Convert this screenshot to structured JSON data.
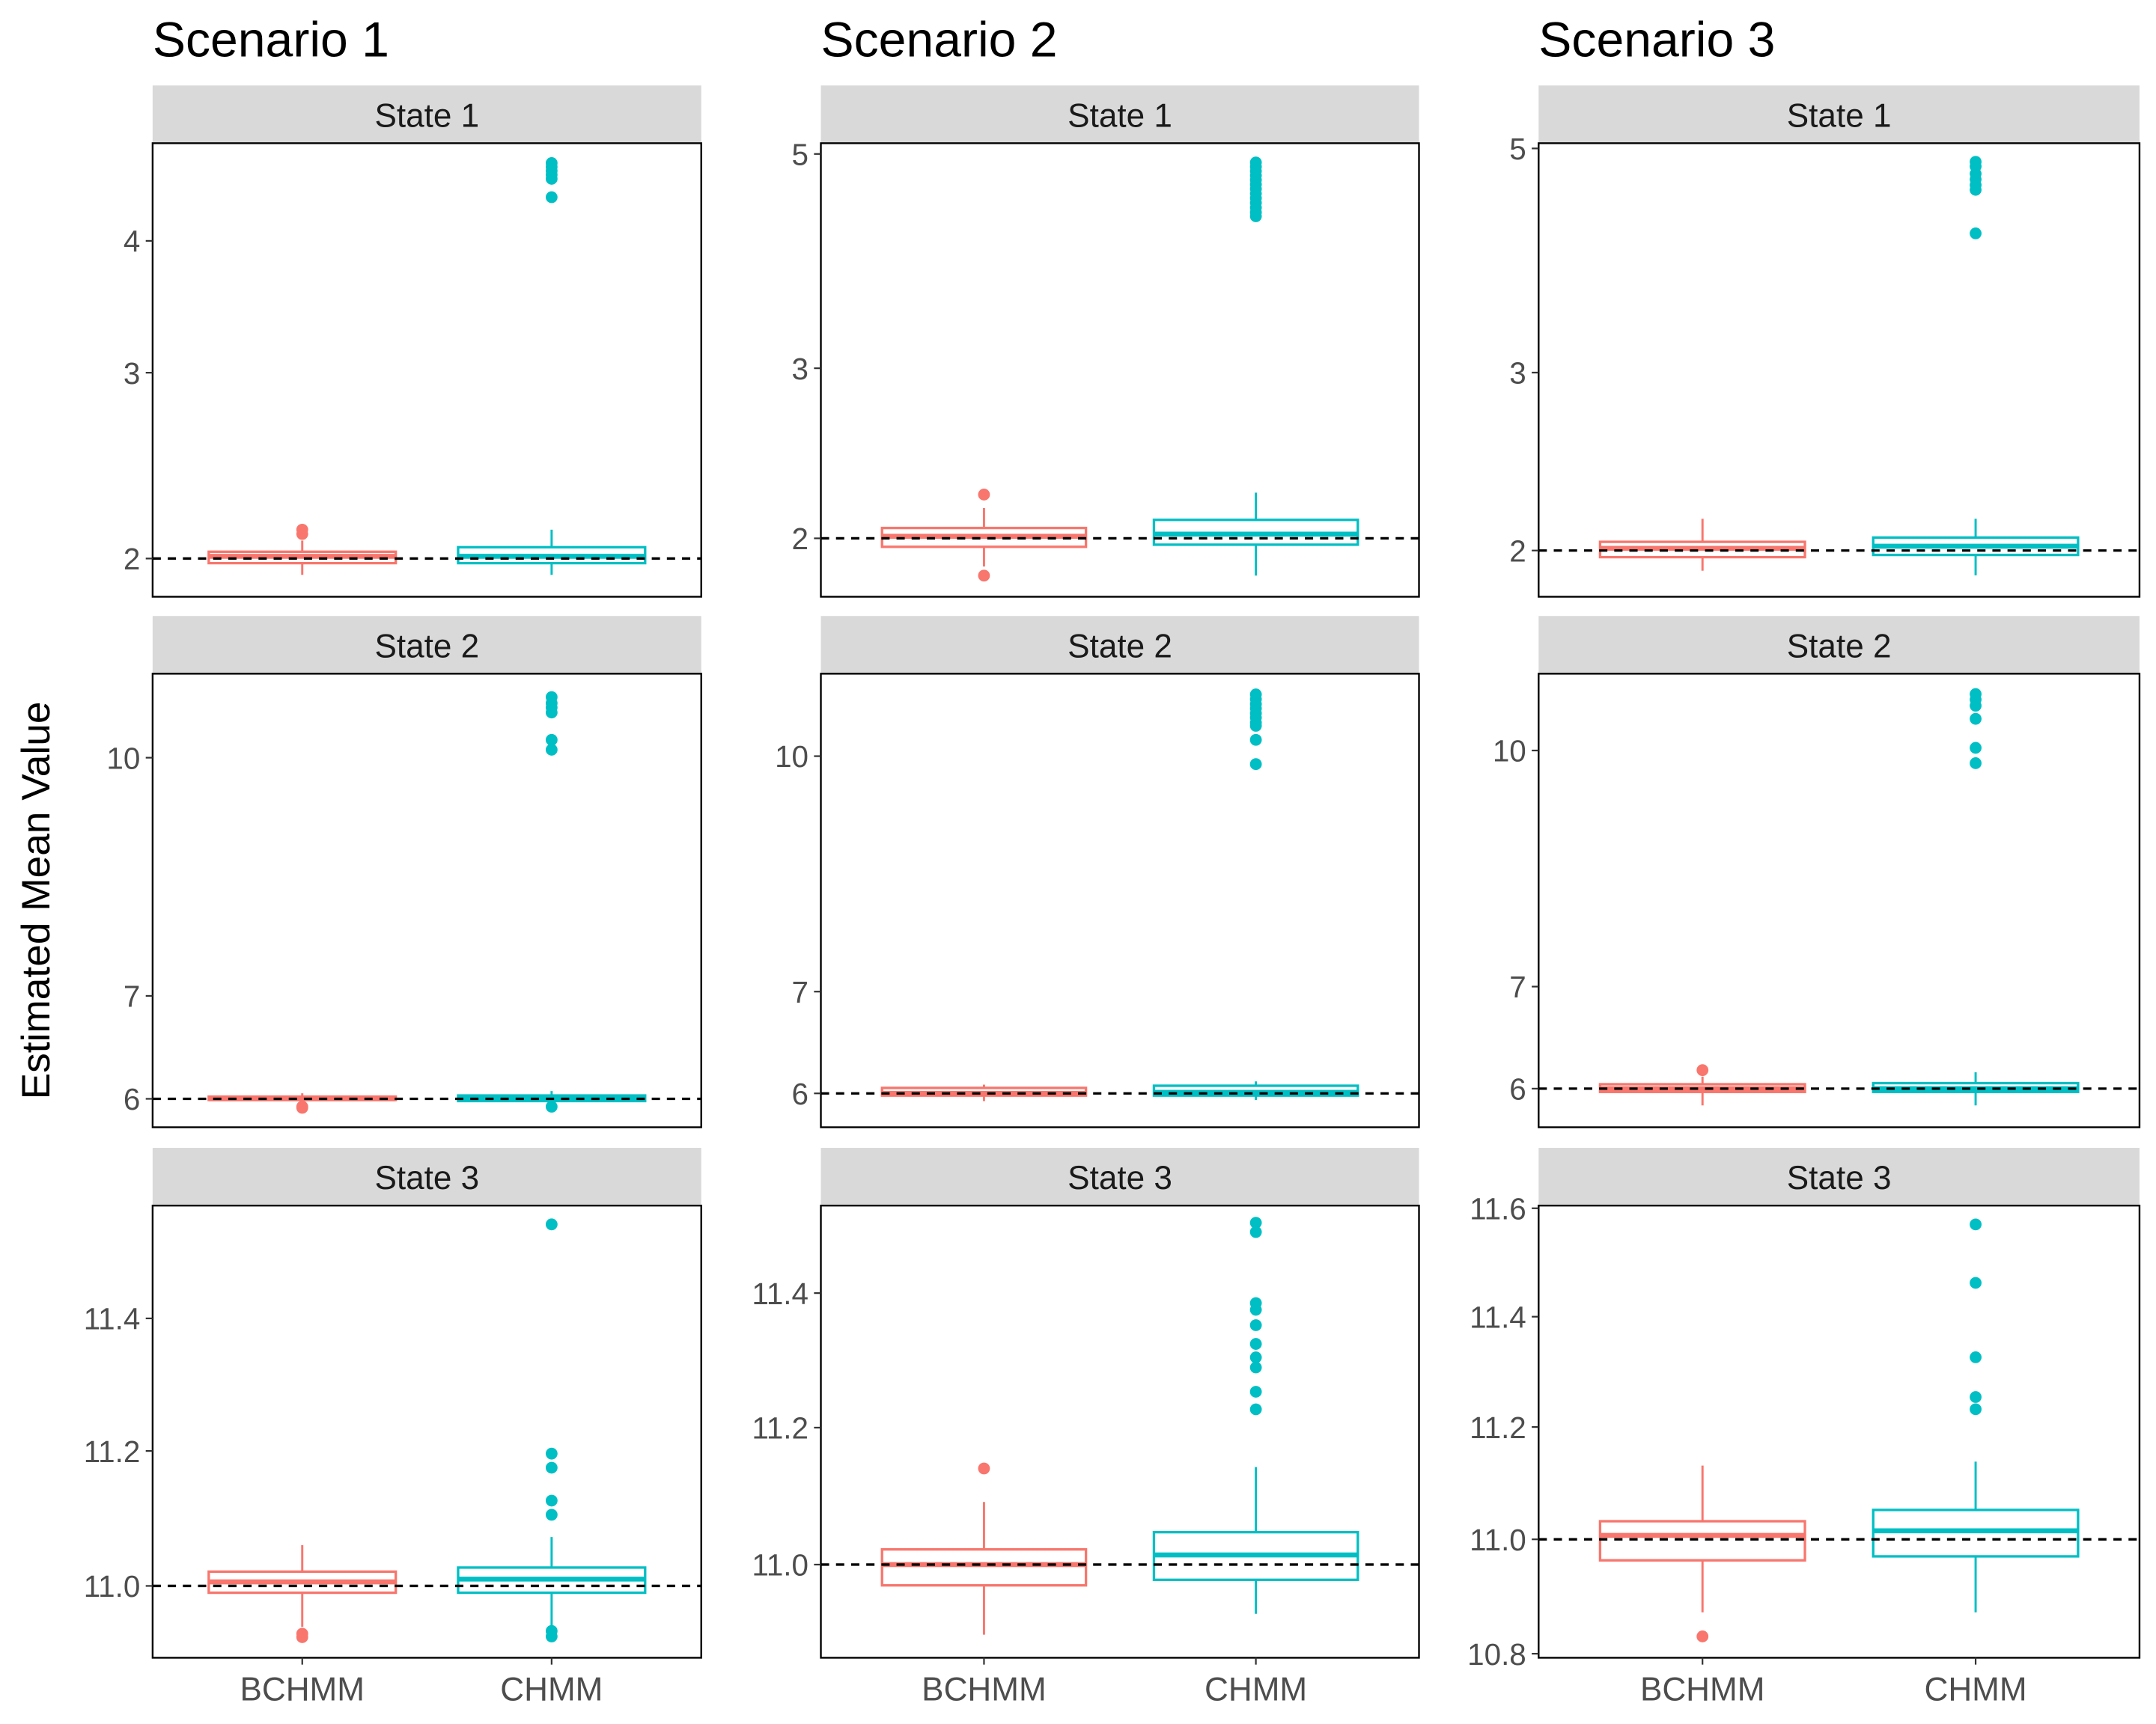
{
  "ylabel": "Estimated Mean Value",
  "categories": [
    "BCHMM",
    "CHMM"
  ],
  "colors": {
    "BCHMM": "#F8766D",
    "CHMM": "#00BFC4",
    "strip": "#D9D9D9",
    "reference": "#000000"
  },
  "scenarios": [
    "Scenario 1",
    "Scenario 2",
    "Scenario 3"
  ],
  "states": [
    "State 1",
    "State 2",
    "State 3"
  ],
  "chart_data": [
    {
      "type": "box",
      "scenario": "Scenario 1",
      "state": "State 1",
      "y_scale": "log10",
      "ylim": [
        1.84,
        4.95
      ],
      "yticks": [
        "2",
        "3",
        "4"
      ],
      "reference_line": 2,
      "series": [
        {
          "category": "BCHMM",
          "whisker_low": 1.93,
          "q1": 1.98,
          "median": 2.01,
          "q3": 2.03,
          "whisker_high": 2.08,
          "outliers": [
            2.11,
            2.13
          ]
        },
        {
          "category": "CHMM",
          "whisker_low": 1.93,
          "q1": 1.98,
          "median": 2.01,
          "q3": 2.05,
          "whisker_high": 2.13,
          "outliers": [
            4.74,
            4.7,
            4.66,
            4.62,
            4.58,
            4.4
          ]
        }
      ]
    },
    {
      "type": "box",
      "scenario": "Scenario 2",
      "state": "State 1",
      "y_scale": "log10",
      "ylim": [
        1.74,
        5.13
      ],
      "yticks": [
        "2",
        "3",
        "5"
      ],
      "reference_line": 2,
      "series": [
        {
          "category": "BCHMM",
          "whisker_low": 1.87,
          "q1": 1.96,
          "median": 2.01,
          "q3": 2.05,
          "whisker_high": 2.15,
          "outliers": [
            1.83,
            2.22
          ]
        },
        {
          "category": "CHMM",
          "whisker_low": 1.83,
          "q1": 1.97,
          "median": 2.02,
          "q3": 2.09,
          "whisker_high": 2.23,
          "outliers": [
            4.9,
            4.85,
            4.8,
            4.75,
            4.7,
            4.65,
            4.6,
            4.55,
            4.5,
            4.45,
            4.4,
            4.35,
            4.31
          ]
        }
      ]
    },
    {
      "type": "box",
      "scenario": "Scenario 3",
      "state": "State 1",
      "y_scale": "log10",
      "ylim": [
        1.8,
        5.06
      ],
      "yticks": [
        "2",
        "3",
        "5"
      ],
      "reference_line": 2,
      "series": [
        {
          "category": "BCHMM",
          "whisker_low": 1.91,
          "q1": 1.97,
          "median": 2.01,
          "q3": 2.04,
          "whisker_high": 2.15,
          "outliers": []
        },
        {
          "category": "CHMM",
          "whisker_low": 1.89,
          "q1": 1.98,
          "median": 2.02,
          "q3": 2.06,
          "whisker_high": 2.15,
          "outliers": [
            4.85,
            4.8,
            4.72,
            4.66,
            4.6,
            4.55,
            4.12
          ]
        }
      ]
    },
    {
      "type": "box",
      "scenario": "Scenario 1",
      "state": "State 2",
      "y_scale": "log10",
      "ylim": [
        5.75,
        11.34
      ],
      "yticks": [
        "6",
        "7",
        "10"
      ],
      "reference_line": 6,
      "series": [
        {
          "category": "BCHMM",
          "whisker_low": 5.95,
          "q1": 5.99,
          "median": 6.0,
          "q3": 6.02,
          "whisker_high": 6.05,
          "outliers": [
            5.93,
            5.92
          ]
        },
        {
          "category": "CHMM",
          "whisker_low": 5.95,
          "q1": 5.98,
          "median": 6.0,
          "q3": 6.03,
          "whisker_high": 6.07,
          "outliers": [
            5.93,
            10.95,
            10.85,
            10.78,
            10.7,
            10.27,
            10.12
          ]
        }
      ]
    },
    {
      "type": "box",
      "scenario": "Scenario 2",
      "state": "State 2",
      "y_scale": "log10",
      "ylim": [
        5.7,
        11.33
      ],
      "yticks": [
        "6",
        "7",
        "10"
      ],
      "reference_line": 6,
      "series": [
        {
          "category": "BCHMM",
          "whisker_low": 5.93,
          "q1": 5.98,
          "median": 6.0,
          "q3": 6.05,
          "whisker_high": 6.08,
          "outliers": []
        },
        {
          "category": "CHMM",
          "whisker_low": 5.94,
          "q1": 5.98,
          "median": 6.01,
          "q3": 6.07,
          "whisker_high": 6.11,
          "outliers": [
            10.98,
            10.9,
            10.82,
            10.75,
            10.67,
            10.6,
            10.52,
            10.47,
            10.25,
            9.88
          ]
        }
      ]
    },
    {
      "type": "box",
      "scenario": "Scenario 3",
      "state": "State 2",
      "y_scale": "log10",
      "ylim": [
        5.66,
        11.23
      ],
      "yticks": [
        "6",
        "7",
        "10"
      ],
      "reference_line": 6,
      "series": [
        {
          "category": "BCHMM",
          "whisker_low": 5.85,
          "q1": 5.97,
          "median": 6.0,
          "q3": 6.04,
          "whisker_high": 6.11,
          "outliers": [
            6.17
          ]
        },
        {
          "category": "CHMM",
          "whisker_low": 5.85,
          "q1": 5.97,
          "median": 6.0,
          "q3": 6.05,
          "whisker_high": 6.15,
          "outliers": [
            10.89,
            10.8,
            10.7,
            10.49,
            10.04,
            9.81
          ]
        }
      ]
    },
    {
      "type": "box",
      "scenario": "Scenario 1",
      "state": "State 3",
      "y_scale": "log10",
      "ylim": [
        10.895,
        11.573
      ],
      "yticks": [
        "11.0",
        "11.2",
        "11.4"
      ],
      "reference_line": 11,
      "series": [
        {
          "category": "BCHMM",
          "whisker_low": 10.94,
          "q1": 10.99,
          "median": 11.006,
          "q3": 11.021,
          "whisker_high": 11.06,
          "outliers": [
            10.93,
            10.925
          ]
        },
        {
          "category": "CHMM",
          "whisker_low": 10.94,
          "q1": 10.99,
          "median": 11.01,
          "q3": 11.027,
          "whisker_high": 11.072,
          "outliers": [
            11.544,
            11.196,
            11.175,
            11.126,
            11.105,
            10.934,
            10.926
          ]
        }
      ]
    },
    {
      "type": "box",
      "scenario": "Scenario 2",
      "state": "State 3",
      "y_scale": "log10",
      "ylim": [
        10.866,
        11.532
      ],
      "yticks": [
        "11.0",
        "11.2",
        "11.4"
      ],
      "reference_line": 11,
      "series": [
        {
          "category": "BCHMM",
          "whisker_low": 10.899,
          "q1": 10.97,
          "median": 11.0,
          "q3": 11.022,
          "whisker_high": 11.091,
          "outliers": [
            11.14
          ]
        },
        {
          "category": "CHMM",
          "whisker_low": 10.929,
          "q1": 10.978,
          "median": 11.014,
          "q3": 11.047,
          "whisker_high": 11.142,
          "outliers": [
            11.506,
            11.492,
            11.385,
            11.375,
            11.352,
            11.324,
            11.304,
            11.289,
            11.253,
            11.227
          ]
        }
      ]
    },
    {
      "type": "box",
      "scenario": "Scenario 3",
      "state": "State 3",
      "y_scale": "log10",
      "ylim": [
        10.793,
        11.605
      ],
      "yticks": [
        "10.8",
        "11.0",
        "11.2",
        "11.4",
        "11.6"
      ],
      "reference_line": 11,
      "series": [
        {
          "category": "BCHMM",
          "whisker_low": 10.872,
          "q1": 10.963,
          "median": 11.007,
          "q3": 11.032,
          "whisker_high": 11.131,
          "outliers": [
            10.83
          ]
        },
        {
          "category": "CHMM",
          "whisker_low": 10.872,
          "q1": 10.97,
          "median": 11.015,
          "q3": 11.052,
          "whisker_high": 11.138,
          "outliers": [
            11.57,
            11.462,
            11.326,
            11.254,
            11.232
          ]
        }
      ]
    }
  ]
}
